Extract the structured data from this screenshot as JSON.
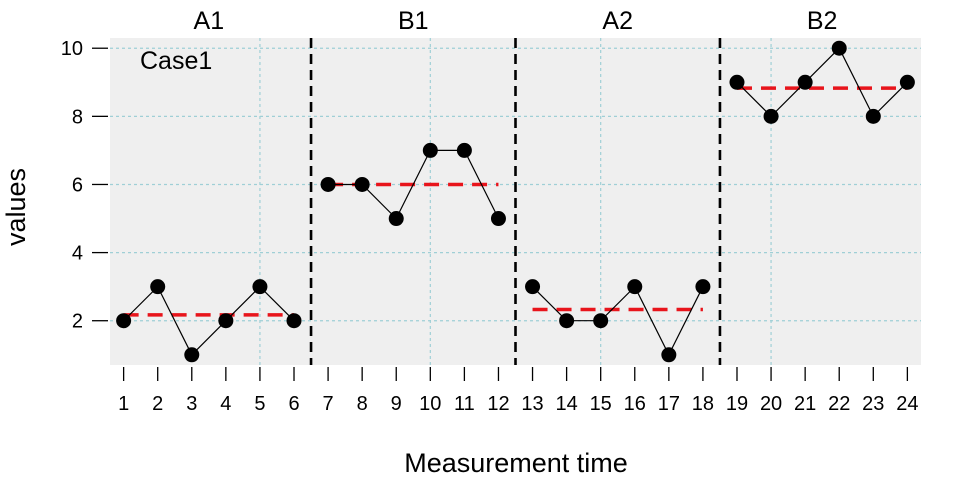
{
  "chart_data": {
    "type": "line",
    "title": "",
    "xlabel": "Measurement time",
    "ylabel": "values",
    "case_label": "Case1",
    "x": [
      1,
      2,
      3,
      4,
      5,
      6,
      7,
      8,
      9,
      10,
      11,
      12,
      13,
      14,
      15,
      16,
      17,
      18,
      19,
      20,
      21,
      22,
      23,
      24
    ],
    "x_tick_labels": [
      "1",
      "2",
      "3",
      "4",
      "5",
      "6",
      "7",
      "8",
      "9",
      "10",
      "11",
      "12",
      "13",
      "14",
      "15",
      "16",
      "17",
      "18",
      "19",
      "20",
      "21",
      "22",
      "23",
      "24"
    ],
    "y_ticks": [
      2,
      4,
      6,
      8,
      10
    ],
    "y_tick_labels": [
      "2",
      "4",
      "6",
      "8",
      "10"
    ],
    "xlim": [
      0.6,
      24.4
    ],
    "ylim": [
      0.7,
      10.3
    ],
    "grid": true,
    "colors": {
      "panel": "#efefef",
      "grid": "#9fcfd6",
      "series": "#000000",
      "mean": "#e8141b",
      "phase_line": "#000000"
    },
    "phases": [
      {
        "label": "A1",
        "start": 1,
        "end": 6,
        "values": [
          2,
          3,
          1,
          2,
          3,
          2
        ],
        "mean": 2.17
      },
      {
        "label": "B1",
        "start": 7,
        "end": 12,
        "values": [
          6,
          6,
          5,
          7,
          7,
          5
        ],
        "mean": 6.0
      },
      {
        "label": "A2",
        "start": 13,
        "end": 18,
        "values": [
          3,
          2,
          2,
          3,
          1,
          3
        ],
        "mean": 2.33
      },
      {
        "label": "B2",
        "start": 19,
        "end": 24,
        "values": [
          9,
          8,
          9,
          10,
          8,
          9
        ],
        "mean": 8.83
      }
    ],
    "phase_boundaries": [
      6.5,
      12.5,
      18.5
    ]
  }
}
